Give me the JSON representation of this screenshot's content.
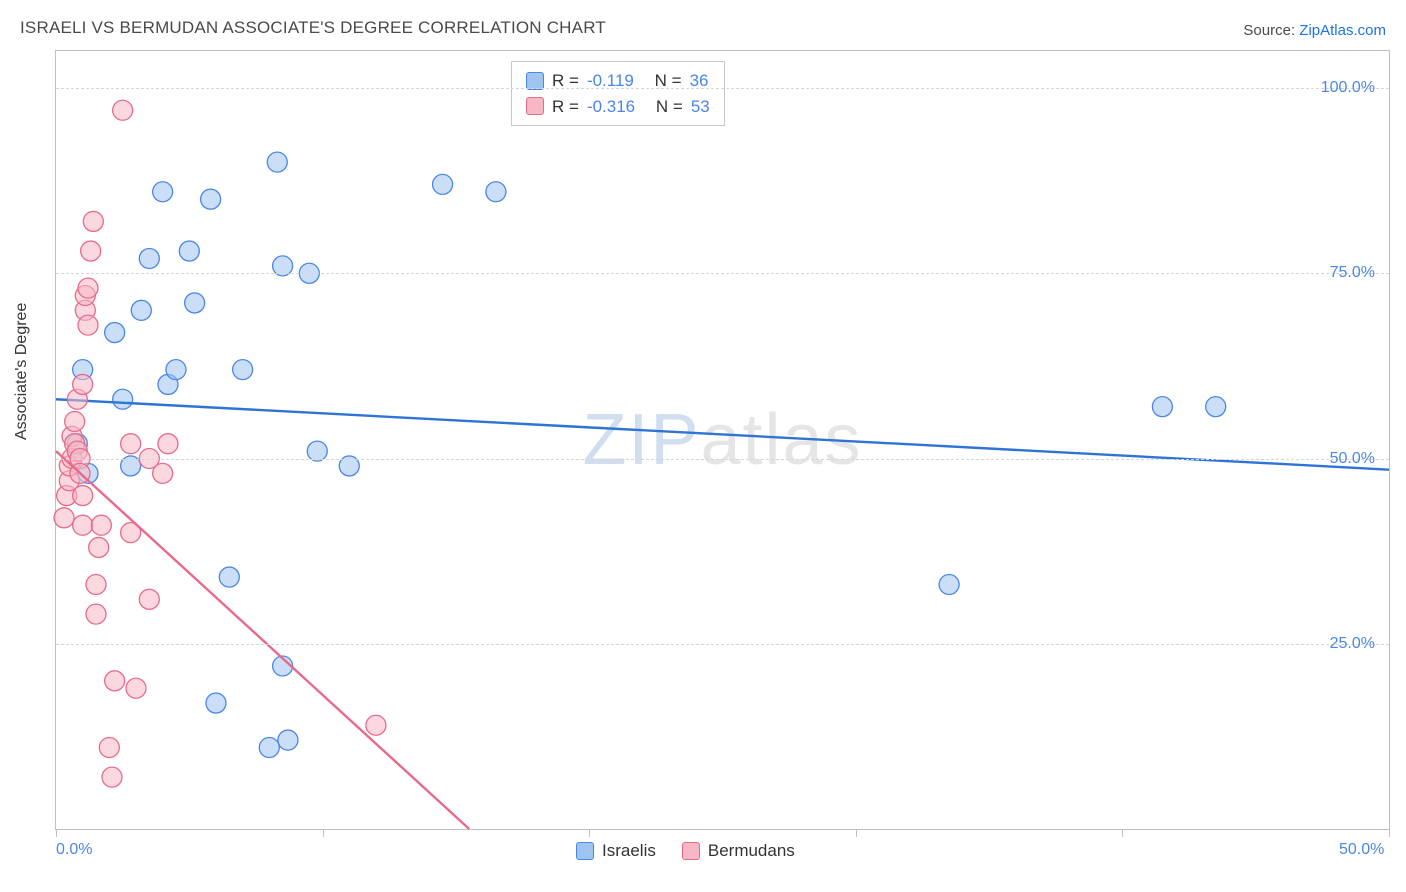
{
  "title": "ISRAELI VS BERMUDAN ASSOCIATE'S DEGREE CORRELATION CHART",
  "source_prefix": "Source: ",
  "source_name": "ZipAtlas.com",
  "watermark_part1": "ZIP",
  "watermark_part2": "atlas",
  "chart": {
    "type": "scatter",
    "ylabel": "Associate's Degree",
    "xlim": [
      0,
      50
    ],
    "ylim": [
      0,
      105
    ],
    "x_ticks": [
      0,
      10,
      20,
      30,
      40,
      50
    ],
    "x_tick_labels": {
      "0": "0.0%",
      "50": "50.0%"
    },
    "y_gridlines": [
      25,
      50,
      75,
      100
    ],
    "y_tick_labels": {
      "25": "25.0%",
      "50": "50.0%",
      "75": "75.0%",
      "100": "100.0%"
    },
    "grid_color": "#d6d6d6",
    "axis_color": "#c0c0c0",
    "tick_label_color": "#4a86e8",
    "label_fontsize": 16,
    "background_color": "#ffffff",
    "marker_radius": 10,
    "marker_opacity": 0.55,
    "line_width": 2.4,
    "series": [
      {
        "name": "Israelis",
        "fill": "#9ec5f0",
        "stroke": "#4a86e8",
        "line_color": "#2e74d6",
        "R": "-0.119",
        "N": "36",
        "trend": {
          "x1": 0,
          "y1": 58,
          "x2": 50,
          "y2": 48.5
        },
        "points": [
          [
            1.0,
            62
          ],
          [
            0.8,
            52
          ],
          [
            1.2,
            48
          ],
          [
            2.2,
            67
          ],
          [
            2.5,
            58
          ],
          [
            2.8,
            49
          ],
          [
            3.2,
            70
          ],
          [
            3.5,
            77
          ],
          [
            4.0,
            86
          ],
          [
            4.2,
            60
          ],
          [
            4.5,
            62
          ],
          [
            5.2,
            71
          ],
          [
            5.0,
            78
          ],
          [
            5.8,
            85
          ],
          [
            6.0,
            17
          ],
          [
            6.5,
            34
          ],
          [
            7.0,
            62
          ],
          [
            8.5,
            76
          ],
          [
            8.0,
            11
          ],
          [
            8.5,
            22
          ],
          [
            8.7,
            12
          ],
          [
            8.3,
            90
          ],
          [
            9.5,
            75
          ],
          [
            9.8,
            51
          ],
          [
            11.0,
            49
          ],
          [
            14.5,
            87
          ],
          [
            16.5,
            86
          ],
          [
            33.5,
            33
          ],
          [
            41.5,
            57
          ],
          [
            43.5,
            57
          ]
        ]
      },
      {
        "name": "Bermudans",
        "fill": "#f7b8c6",
        "stroke": "#e86a8a",
        "line_color": "#e86a8a",
        "R": "-0.316",
        "N": "53",
        "trend": {
          "x1": 0,
          "y1": 51,
          "x2": 15.5,
          "y2": 0
        },
        "points": [
          [
            0.3,
            42
          ],
          [
            0.4,
            45
          ],
          [
            0.5,
            47
          ],
          [
            0.5,
            49
          ],
          [
            0.6,
            50
          ],
          [
            0.6,
            53
          ],
          [
            0.7,
            52
          ],
          [
            0.7,
            55
          ],
          [
            0.8,
            51
          ],
          [
            0.8,
            58
          ],
          [
            0.9,
            50
          ],
          [
            0.9,
            48
          ],
          [
            1.0,
            45
          ],
          [
            1.0,
            41
          ],
          [
            1.0,
            60
          ],
          [
            1.1,
            70
          ],
          [
            1.1,
            72
          ],
          [
            1.2,
            73
          ],
          [
            1.2,
            68
          ],
          [
            1.3,
            78
          ],
          [
            1.4,
            82
          ],
          [
            1.5,
            29
          ],
          [
            1.5,
            33
          ],
          [
            1.6,
            38
          ],
          [
            1.7,
            41
          ],
          [
            2.0,
            11
          ],
          [
            2.1,
            7
          ],
          [
            2.2,
            20
          ],
          [
            2.5,
            97
          ],
          [
            2.8,
            40
          ],
          [
            2.8,
            52
          ],
          [
            3.0,
            19
          ],
          [
            3.5,
            31
          ],
          [
            3.5,
            50
          ],
          [
            4.0,
            48
          ],
          [
            4.2,
            52
          ],
          [
            12.0,
            14
          ]
        ]
      }
    ]
  },
  "stats_legend": {
    "R_label": "R =",
    "N_label": "N ="
  },
  "bottom_legend": {
    "items": [
      "Israelis",
      "Bermudans"
    ]
  }
}
